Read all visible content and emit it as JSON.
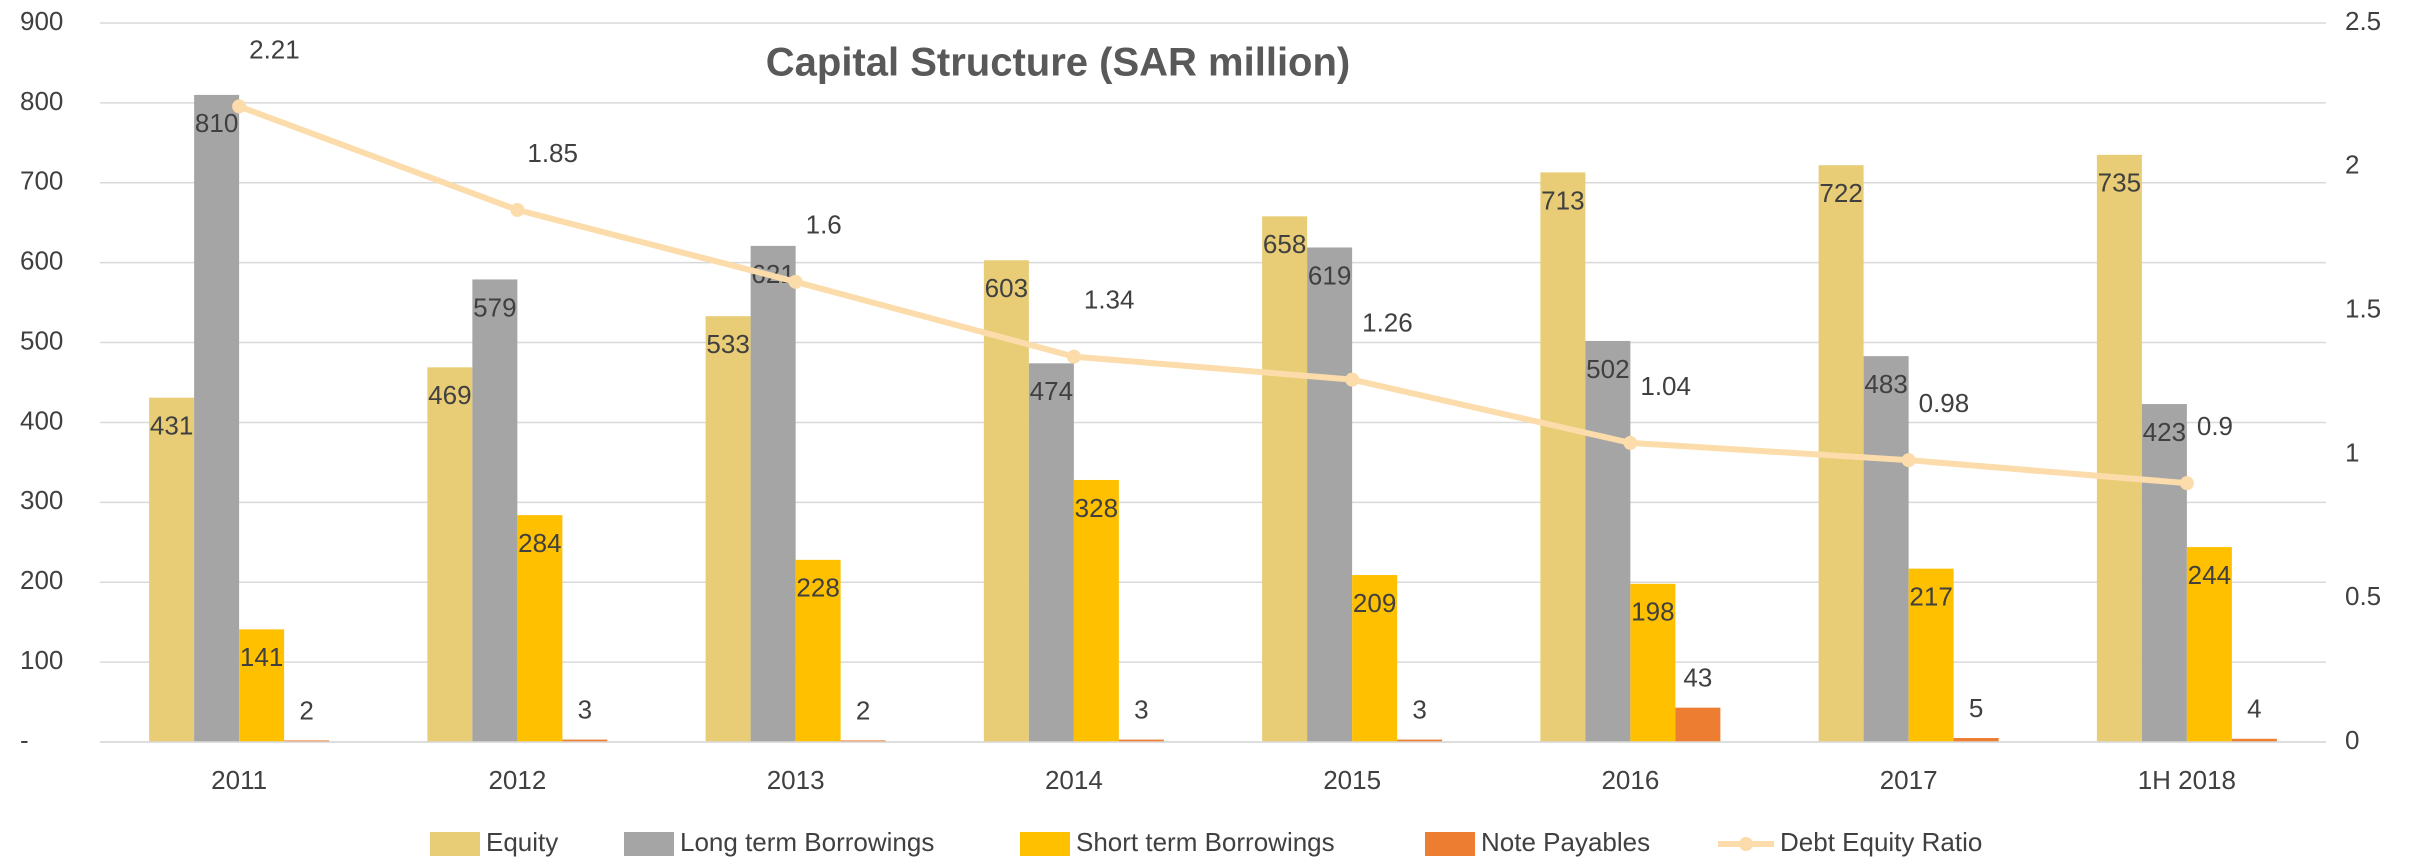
{
  "chart_data": {
    "type": "bar",
    "title": "Capital Structure (SAR million)",
    "categories": [
      "2011",
      "2012",
      "2013",
      "2014",
      "2015",
      "2016",
      "2017",
      "1H 2018"
    ],
    "series": [
      {
        "name": "Equity",
        "color": "#e8cd76",
        "values": [
          431,
          469,
          533,
          603,
          658,
          713,
          722,
          735
        ]
      },
      {
        "name": "Long term Borrowings",
        "color": "#a5a5a5",
        "values": [
          810,
          579,
          621,
          474,
          619,
          502,
          483,
          423
        ]
      },
      {
        "name": "Short term Borrowings",
        "color": "#ffc000",
        "values": [
          141,
          284,
          228,
          328,
          209,
          198,
          217,
          244
        ]
      },
      {
        "name": "Note Payables",
        "color": "#ed7d31",
        "values": [
          2,
          3,
          2,
          3,
          3,
          43,
          5,
          4
        ]
      },
      {
        "name": "Debt Equity Ratio",
        "color": "#fbdcaa",
        "type": "line",
        "axis": "y2",
        "values": [
          2.21,
          1.85,
          1.6,
          1.34,
          1.26,
          1.04,
          0.98,
          0.9
        ]
      }
    ],
    "ylim": [
      0,
      900
    ],
    "yticks": [
      {
        "value": 0,
        "label": "-"
      },
      100,
      200,
      300,
      400,
      500,
      600,
      700,
      800,
      900
    ],
    "y2lim": [
      0,
      2.5
    ],
    "y2ticks": [
      0,
      0.5,
      1,
      1.5,
      2,
      2.5
    ],
    "grid": true,
    "legend": "bottom"
  }
}
